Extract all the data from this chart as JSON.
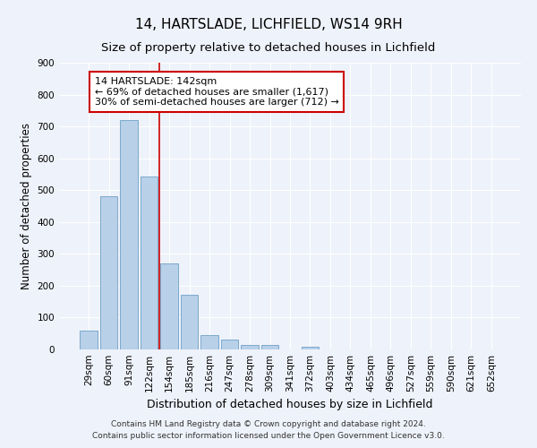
{
  "title": "14, HARTSLADE, LICHFIELD, WS14 9RH",
  "subtitle": "Size of property relative to detached houses in Lichfield",
  "xlabel": "Distribution of detached houses by size in Lichfield",
  "ylabel": "Number of detached properties",
  "categories": [
    "29sqm",
    "60sqm",
    "91sqm",
    "122sqm",
    "154sqm",
    "185sqm",
    "216sqm",
    "247sqm",
    "278sqm",
    "309sqm",
    "341sqm",
    "372sqm",
    "403sqm",
    "434sqm",
    "465sqm",
    "496sqm",
    "527sqm",
    "559sqm",
    "590sqm",
    "621sqm",
    "652sqm"
  ],
  "values": [
    58,
    480,
    720,
    543,
    270,
    172,
    45,
    30,
    15,
    13,
    0,
    8,
    0,
    0,
    0,
    0,
    0,
    0,
    0,
    0,
    0
  ],
  "bar_color": "#b8d0e8",
  "bar_edge_color": "#6ea0c8",
  "red_line_x": 3.5,
  "annotation_line1": "14 HARTSLADE: 142sqm",
  "annotation_line2": "← 69% of detached houses are smaller (1,617)",
  "annotation_line3": "30% of semi-detached houses are larger (712) →",
  "annotation_box_color": "#ffffff",
  "annotation_box_edge": "#cc0000",
  "ylim": [
    0,
    900
  ],
  "yticks": [
    0,
    100,
    200,
    300,
    400,
    500,
    600,
    700,
    800,
    900
  ],
  "footer1": "Contains HM Land Registry data © Crown copyright and database right 2024.",
  "footer2": "Contains public sector information licensed under the Open Government Licence v3.0.",
  "background_color": "#eef2fa",
  "grid_color": "#ffffff",
  "title_fontsize": 11,
  "subtitle_fontsize": 9.5,
  "xlabel_fontsize": 9,
  "ylabel_fontsize": 8.5,
  "tick_fontsize": 7.5,
  "annotation_fontsize": 8,
  "footer_fontsize": 6.5
}
